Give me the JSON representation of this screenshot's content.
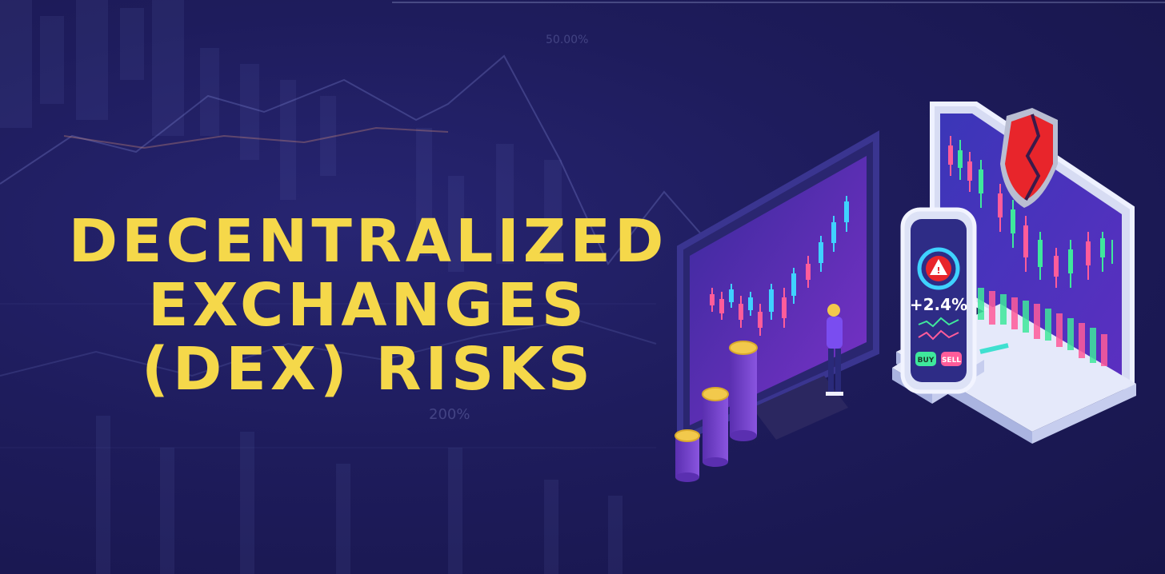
{
  "headline": {
    "line1": "DECENTRALIZED",
    "line2": "EXCHANGES",
    "line3": "(DEX) RISKS"
  },
  "background_labels": {
    "percent_mid": "200%",
    "percent_top": "50.00%"
  },
  "phone": {
    "change": "+2.4%",
    "buy_label": "BUY",
    "sell_label": "SELL"
  },
  "colors": {
    "headline": "#f5d84a",
    "background": "#1c1a52",
    "candle_up": "#3fd2ff",
    "candle_down": "#ff5c9a",
    "shield": "#e8252b",
    "coin": "#f2c94c"
  }
}
